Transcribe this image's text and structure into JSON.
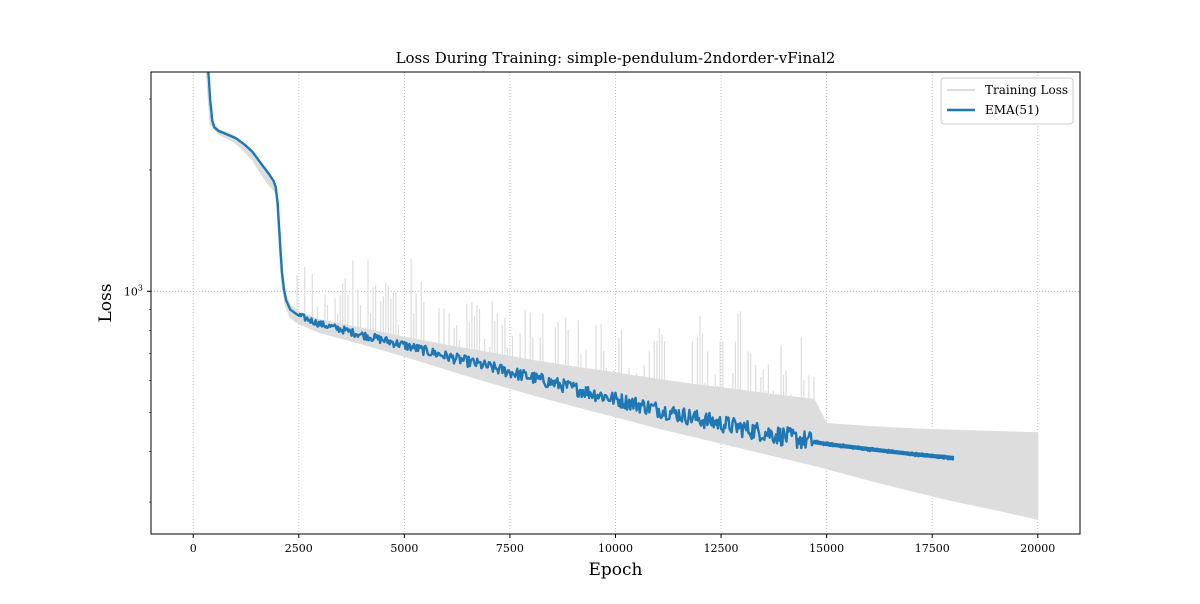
{
  "chart_data": {
    "type": "line",
    "title": "Loss During Training: simple-pendulum-2ndorder-vFinal2",
    "xlabel": "Epoch",
    "ylabel": "Loss",
    "xlim": [
      -1000,
      21000
    ],
    "ylim": [
      250,
      3500
    ],
    "yscale": "log",
    "grid": true,
    "legend_position": "top-right",
    "x_ticks": [
      {
        "value": 0,
        "label": "0"
      },
      {
        "value": 2500,
        "label": "2500"
      },
      {
        "value": 5000,
        "label": "5000"
      },
      {
        "value": 7500,
        "label": "7500"
      },
      {
        "value": 10000,
        "label": "10000"
      },
      {
        "value": 12500,
        "label": "12500"
      },
      {
        "value": 15000,
        "label": "15000"
      },
      {
        "value": 17500,
        "label": "17500"
      },
      {
        "value": 20000,
        "label": "20000"
      }
    ],
    "y_ticks": [
      {
        "value": 1000,
        "base": "10",
        "exp": "3"
      }
    ],
    "series": [
      {
        "name": "Training Loss",
        "color": "#dddddd",
        "x": [
          300,
          400,
          600,
          800,
          1000,
          1200,
          1400,
          1600,
          1800,
          1950,
          2000,
          2050,
          2100,
          2150,
          2200,
          2300,
          2500,
          3000,
          4000,
          5000,
          6000,
          7000,
          8000,
          9000,
          10000,
          11000,
          12000,
          13000,
          14000,
          14700,
          15000,
          16000,
          17000,
          18000,
          19000,
          20000
        ],
        "low": [
          3600,
          2600,
          2450,
          2400,
          2330,
          2230,
          2120,
          1960,
          1830,
          1760,
          1500,
          1200,
          1030,
          960,
          910,
          860,
          830,
          790,
          740,
          690,
          640,
          595,
          555,
          520,
          488,
          458,
          432,
          408,
          385,
          370,
          363,
          340,
          320,
          302,
          287,
          272
        ],
        "high": [
          3600,
          2700,
          2520,
          2480,
          2420,
          2330,
          2220,
          2060,
          1930,
          1850,
          1620,
          1300,
          1110,
          1030,
          980,
          925,
          890,
          850,
          810,
          770,
          735,
          705,
          675,
          650,
          628,
          605,
          585,
          568,
          550,
          540,
          470,
          462,
          456,
          452,
          449,
          446
        ]
      },
      {
        "name": "EMA(51)",
        "color": "#1f77b4",
        "x": [
          350,
          400,
          450,
          500,
          600,
          800,
          1000,
          1200,
          1400,
          1600,
          1800,
          1900,
          1950,
          2000,
          2050,
          2100,
          2150,
          2200,
          2300,
          2500,
          3000,
          4000,
          5000,
          6000,
          7000,
          8000,
          9000,
          10000,
          11000,
          12000,
          13000,
          14000,
          14700,
          15000,
          16000,
          17000,
          18000
        ],
        "y": [
          3600,
          3000,
          2650,
          2550,
          2500,
          2450,
          2400,
          2320,
          2220,
          2080,
          1950,
          1880,
          1820,
          1650,
          1350,
          1120,
          1010,
          950,
          900,
          870,
          830,
          780,
          735,
          690,
          650,
          612,
          575,
          540,
          510,
          482,
          458,
          437,
          423,
          418,
          406,
          395,
          386
        ],
        "noise_start": 2500,
        "noise_end": 14700,
        "noise_amplitude": 0.045
      }
    ]
  }
}
